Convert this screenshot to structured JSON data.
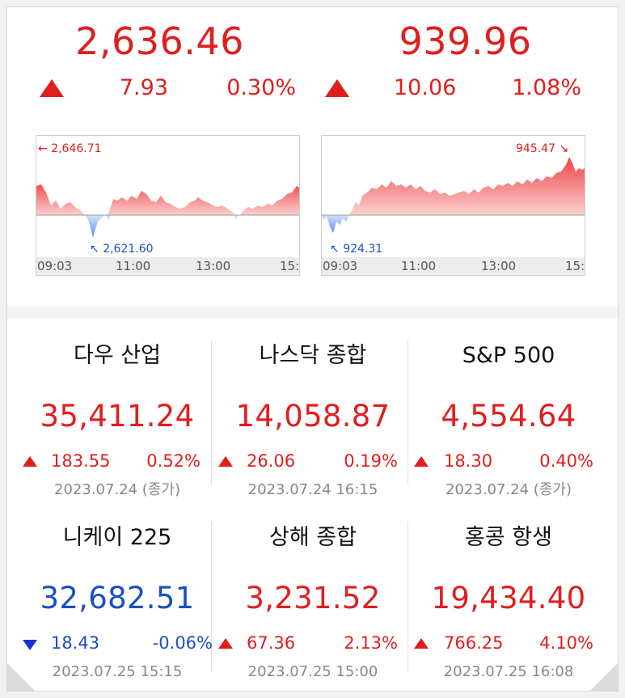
{
  "kospi": {
    "value": "2,636.46",
    "change": "7.93",
    "percent": "0.30%",
    "direction": "up",
    "chart": {
      "high_label": "2,646.71",
      "low_label": "2,621.60",
      "ticks": [
        "09:03",
        "11:00",
        "13:00",
        "15:"
      ]
    }
  },
  "kosdaq": {
    "value": "939.96",
    "change": "10.06",
    "percent": "1.08%",
    "direction": "up",
    "chart": {
      "high_label": "945.47",
      "low_label": "924.31",
      "ticks": [
        "09:03",
        "11:00",
        "13:00",
        "15:"
      ]
    }
  },
  "indices": [
    {
      "name": "다우 산업",
      "value": "35,411.24",
      "change": "183.55",
      "percent": "0.52%",
      "date": "2023.07.24 (종가)",
      "direction": "up"
    },
    {
      "name": "나스닥 종합",
      "value": "14,058.87",
      "change": "26.06",
      "percent": "0.19%",
      "date": "2023.07.24 16:15",
      "direction": "up"
    },
    {
      "name": "S&P 500",
      "value": "4,554.64",
      "change": "18.30",
      "percent": "0.40%",
      "date": "2023.07.24 (종가)",
      "direction": "up"
    },
    {
      "name": "니케이 225",
      "value": "32,682.51",
      "change": "18.43",
      "percent": "-0.06%",
      "date": "2023.07.25 15:15",
      "direction": "down"
    },
    {
      "name": "상해 종합",
      "value": "3,231.52",
      "change": "67.36",
      "percent": "2.13%",
      "date": "2023.07.25 15:00",
      "direction": "up"
    },
    {
      "name": "홍콩 항생",
      "value": "19,434.40",
      "change": "766.25",
      "percent": "4.10%",
      "date": "2023.07.25 16:08",
      "direction": "up"
    }
  ],
  "colors": {
    "up": "#e01e1e",
    "down": "#1a4fc4"
  }
}
